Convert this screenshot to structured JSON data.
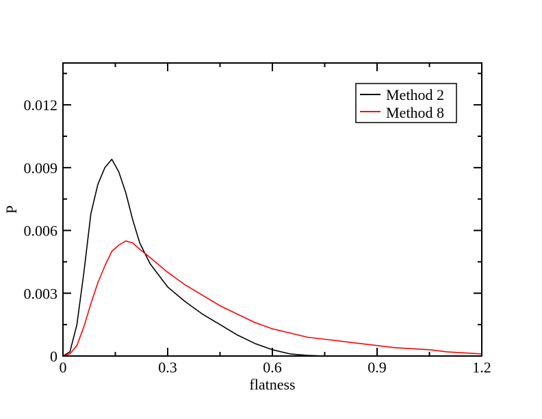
{
  "chart_data": {
    "type": "line",
    "title": "",
    "xlabel": "flatness",
    "ylabel": "P",
    "xlim": [
      0,
      1.2
    ],
    "ylim": [
      0,
      0.014
    ],
    "x_ticks": [
      0,
      0.3,
      0.6,
      0.9,
      1.2
    ],
    "x_tick_labels": [
      "0",
      "0.3",
      "0.6",
      "0.9",
      "1.2"
    ],
    "y_ticks": [
      0,
      0.003,
      0.006,
      0.009,
      0.012
    ],
    "y_tick_labels": [
      "0",
      "0.003",
      "0.006",
      "0.009",
      "0.012"
    ],
    "grid": false,
    "legend_position": "top-right",
    "series": [
      {
        "name": "Method 2",
        "color": "#000000",
        "x": [
          0.0,
          0.02,
          0.04,
          0.06,
          0.08,
          0.1,
          0.12,
          0.14,
          0.16,
          0.18,
          0.2,
          0.22,
          0.25,
          0.3,
          0.35,
          0.4,
          0.45,
          0.5,
          0.55,
          0.6,
          0.65,
          0.7,
          0.75
        ],
        "y": [
          0.0,
          0.0002,
          0.0015,
          0.004,
          0.0068,
          0.0082,
          0.009,
          0.0094,
          0.0088,
          0.0078,
          0.0065,
          0.0054,
          0.0044,
          0.0033,
          0.0026,
          0.002,
          0.0015,
          0.001,
          0.0006,
          0.0003,
          0.0001,
          3e-05,
          0.0
        ]
      },
      {
        "name": "Method 8",
        "color": "#ff0000",
        "x": [
          0.0,
          0.02,
          0.04,
          0.06,
          0.08,
          0.1,
          0.12,
          0.14,
          0.16,
          0.18,
          0.2,
          0.22,
          0.25,
          0.3,
          0.35,
          0.4,
          0.45,
          0.5,
          0.55,
          0.6,
          0.65,
          0.7,
          0.75,
          0.8,
          0.85,
          0.9,
          0.95,
          1.0,
          1.05,
          1.1,
          1.15,
          1.2
        ],
        "y": [
          0.0,
          0.0001,
          0.0005,
          0.0014,
          0.0025,
          0.0035,
          0.0043,
          0.005,
          0.0053,
          0.0055,
          0.0054,
          0.0051,
          0.0047,
          0.004,
          0.0034,
          0.0029,
          0.0024,
          0.002,
          0.0016,
          0.0013,
          0.0011,
          0.0009,
          0.0008,
          0.0007,
          0.0006,
          0.0005,
          0.0004,
          0.00035,
          0.0003,
          0.0002,
          0.00015,
          0.0001
        ]
      }
    ]
  }
}
